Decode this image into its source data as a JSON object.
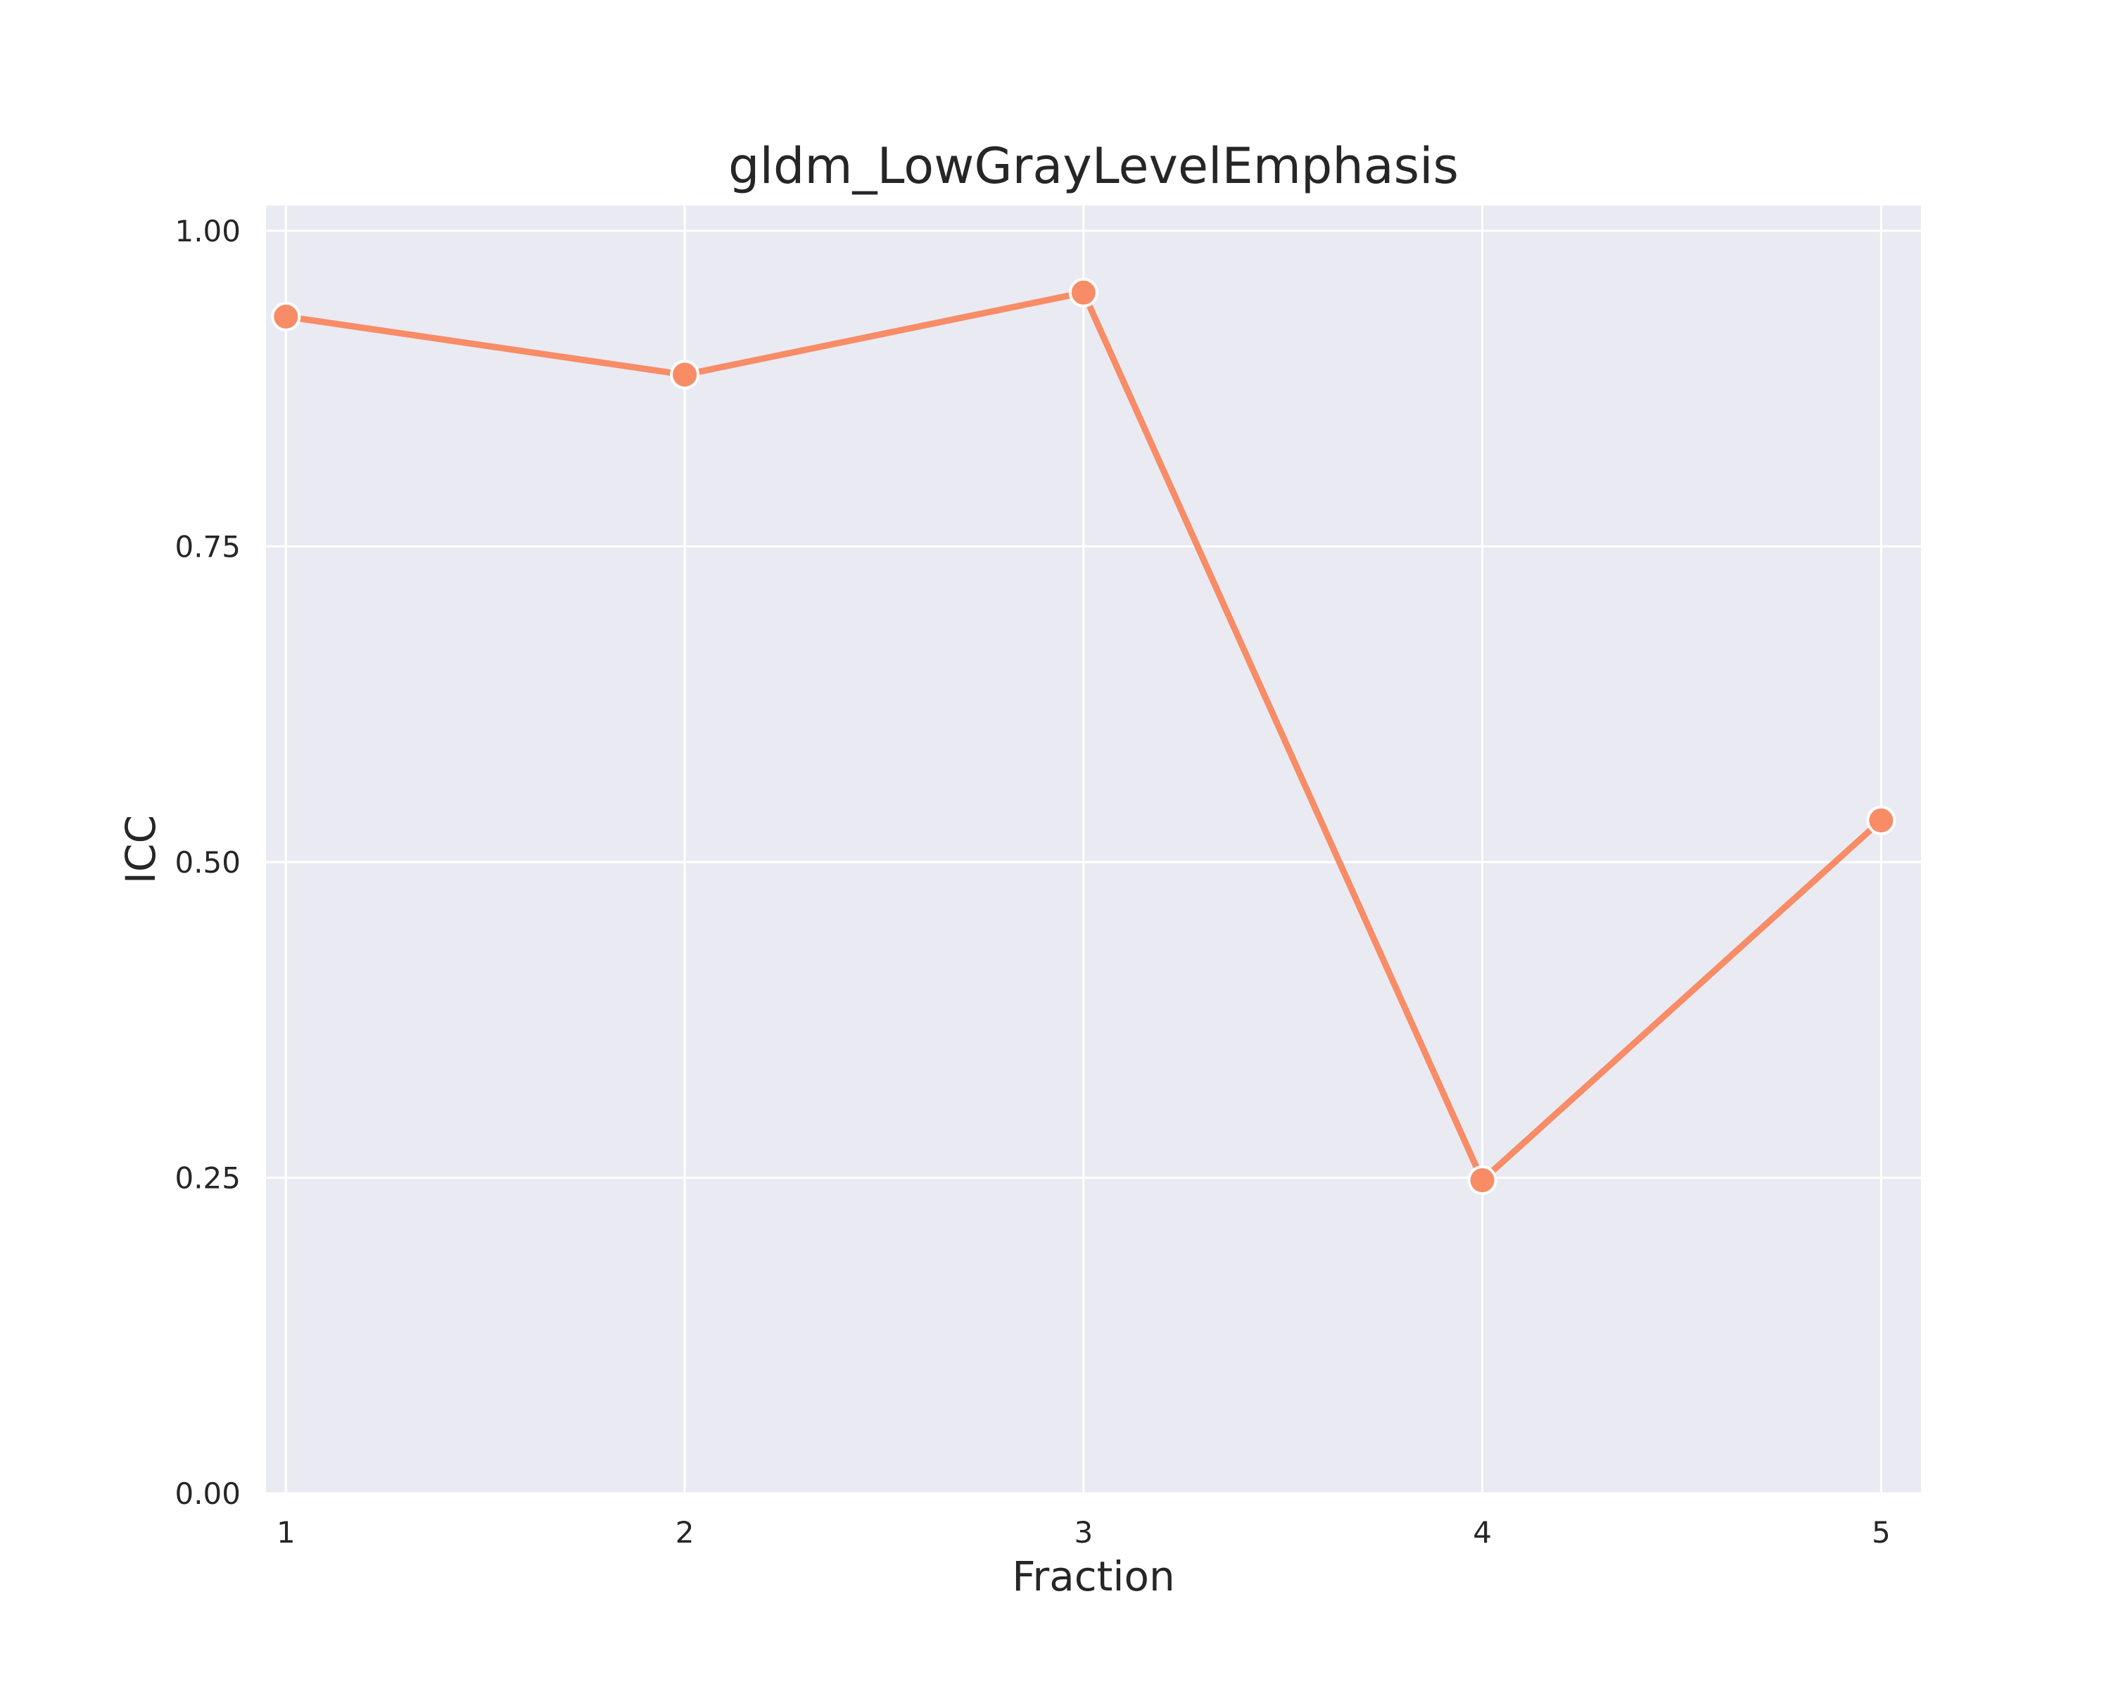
{
  "colors": {
    "plot_background": "#EAEAF2",
    "grid": "#FFFFFF",
    "series_line": "#F78C66",
    "text": "#262626"
  },
  "chart_data": {
    "type": "line",
    "title": "gldm_LowGrayLevelEmphasis",
    "xlabel": "Fraction",
    "ylabel": "ICC",
    "x": [
      1,
      2,
      3,
      4,
      5
    ],
    "xticks": [
      "1",
      "2",
      "3",
      "4",
      "5"
    ],
    "series": [
      {
        "values": [
          0.932,
          0.886,
          0.951,
          0.248,
          0.533
        ],
        "marker": "circle"
      }
    ],
    "ylim": [
      0,
      1.02
    ],
    "xlim": [
      0.95,
      5.1
    ],
    "yticks": [
      0,
      0.25,
      0.5,
      0.75,
      1.0
    ],
    "yticklabels": [
      "0.00",
      "0.25",
      "0.50",
      "0.75",
      "1.00"
    ],
    "grid": true,
    "legend": "none"
  }
}
